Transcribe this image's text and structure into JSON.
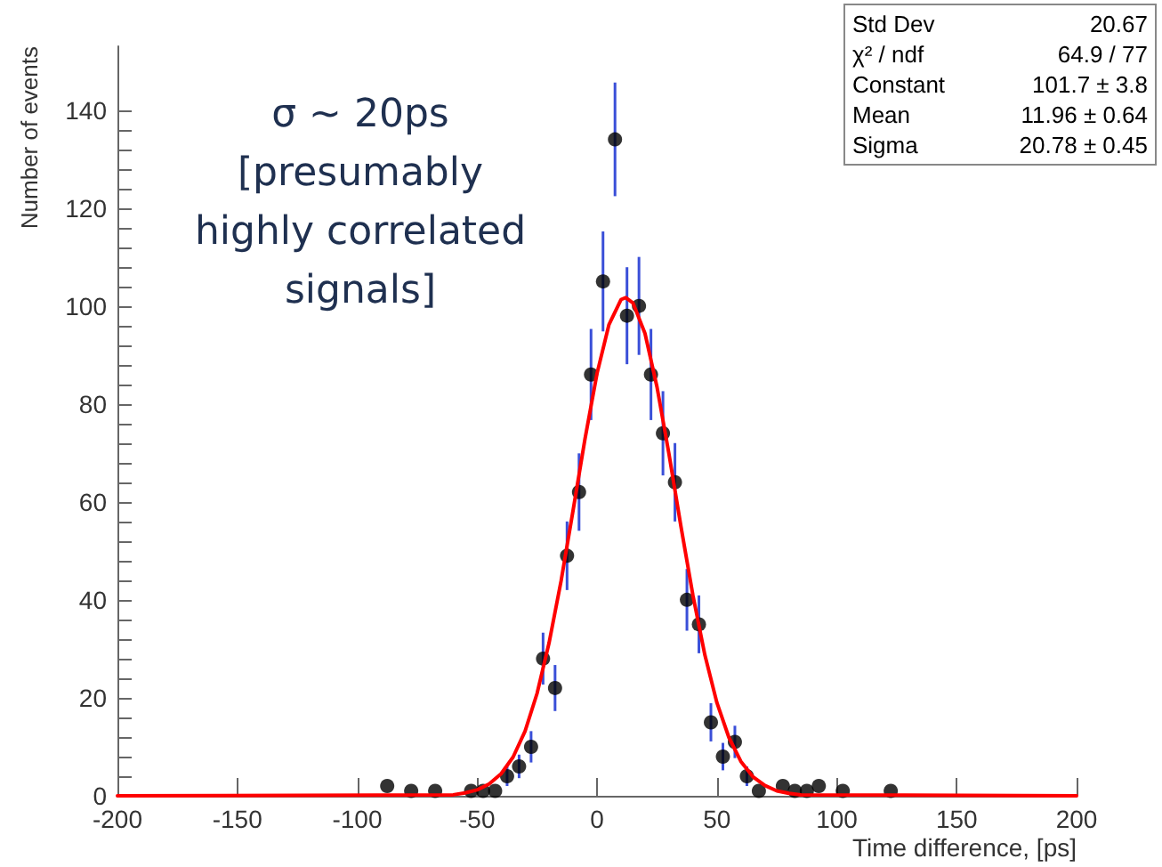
{
  "chart_data": {
    "type": "scatter",
    "xlabel": "Time difference, [ps]",
    "ylabel": "Number of events",
    "xlim": [
      -200,
      200
    ],
    "xticks": [
      -200,
      -150,
      -100,
      -50,
      0,
      50,
      100,
      150,
      200
    ],
    "ylim": [
      0,
      153
    ],
    "yticks": [
      0,
      20,
      40,
      60,
      80,
      100,
      120,
      140
    ],
    "grid": false,
    "annotations": [
      "σ ~ 20ps\n[presumably\nhighly correlated\nsignals]",
      "Std Dev\t20.67",
      "χ² / ndf\t64.9 / 77",
      "Constant\t101.7 ± 3.8",
      "Mean\t11.96 ± 0.64",
      "Sigma\t20.78 ± 0.45"
    ],
    "series": [
      {
        "type": "scatter",
        "color": "#000000",
        "marker": "circle",
        "x": [
          -87.5,
          -77.5,
          -67.5,
          -52.5,
          -47.5,
          -42.5,
          -37.5,
          -32.5,
          -27.5,
          -22.5,
          -17.5,
          -12.5,
          -7.5,
          -2.5,
          2.5,
          7.5,
          12.5,
          17.5,
          22.5,
          27.5,
          32.5,
          37.5,
          42.5,
          47.5,
          52.5,
          57.5,
          62.5,
          67.5,
          77.5,
          82.5,
          87.5,
          92.5,
          102.5,
          122.5
        ],
        "values": [
          2,
          1,
          1,
          1,
          1,
          1,
          4,
          6,
          10,
          28,
          22,
          49,
          62,
          86,
          105,
          134,
          98,
          100,
          86,
          74,
          64,
          40,
          35,
          15,
          8,
          11,
          4,
          1,
          2,
          1,
          1,
          2,
          1,
          1
        ],
        "errors": [
          null,
          null,
          null,
          null,
          null,
          null,
          2,
          2.4,
          3.2,
          5.3,
          4.7,
          7,
          7.9,
          9.3,
          10.2,
          11.6,
          9.9,
          10,
          9.3,
          8.6,
          8,
          6.3,
          5.9,
          3.9,
          2.8,
          3.3,
          2,
          null,
          null,
          null,
          null,
          null,
          null,
          null
        ]
      },
      {
        "type": "line",
        "color": "#ff0000",
        "marker": "none",
        "x": [
          -200,
          -60,
          -55,
          -50,
          -45,
          -40,
          -35,
          -30,
          -25,
          -20,
          -15,
          -10,
          -5,
          0,
          5,
          10,
          12,
          15,
          20,
          25,
          30,
          35,
          40,
          45,
          50,
          55,
          60,
          65,
          70,
          75,
          80,
          85,
          200
        ],
        "values": [
          0,
          0.2,
          0.6,
          1.2,
          2.4,
          4.5,
          7.9,
          13.2,
          20.9,
          31.2,
          43.8,
          58.2,
          72.9,
          86.2,
          96.2,
          101.3,
          101.7,
          100.6,
          94.4,
          83.5,
          69.8,
          55.0,
          40.9,
          28.7,
          19.0,
          11.9,
          7.0,
          3.9,
          2.1,
          1.0,
          0.5,
          0.2,
          0
        ]
      }
    ]
  }
}
